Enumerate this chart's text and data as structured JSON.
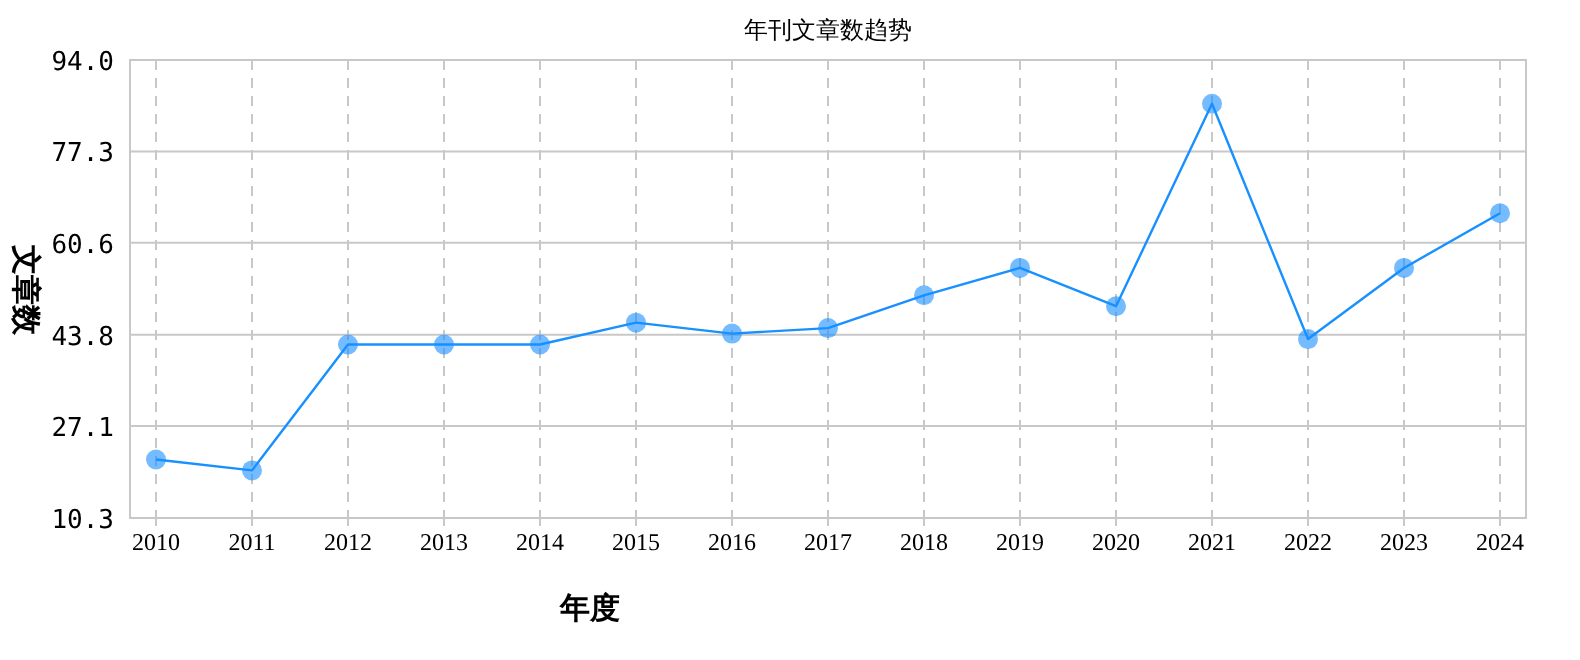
{
  "chart_data": {
    "type": "line",
    "title": "年刊文章数趋势",
    "xlabel": "年度",
    "ylabel": "文章数",
    "categories": [
      "2010",
      "2011",
      "2012",
      "2013",
      "2014",
      "2015",
      "2016",
      "2017",
      "2018",
      "2019",
      "2020",
      "2021",
      "2022",
      "2023",
      "2024"
    ],
    "series": [
      {
        "color": "#1890ff",
        "values": [
          21,
          19,
          42,
          42,
          42,
          46,
          44,
          45,
          51,
          56,
          49,
          86,
          43,
          56,
          66
        ]
      }
    ],
    "ylim": [
      10.3,
      94.0
    ],
    "yticks": [
      {
        "value": 10.3,
        "label": "10.3"
      },
      {
        "value": 27.1,
        "label": "27.1"
      },
      {
        "value": 43.8,
        "label": "43.8"
      },
      {
        "value": 60.6,
        "label": "60.6"
      },
      {
        "value": 77.3,
        "label": "77.3"
      },
      {
        "value": 94.0,
        "label": "94.0"
      }
    ],
    "grid": true,
    "marker": "circle",
    "line_style": "solid"
  }
}
